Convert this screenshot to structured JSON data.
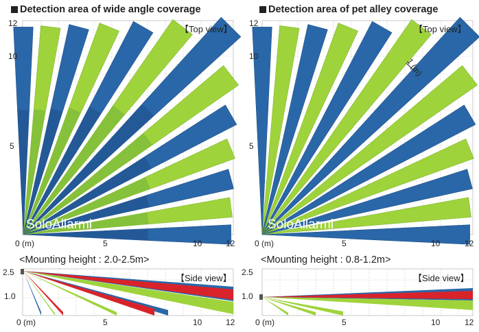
{
  "left": {
    "title": "Detection area of wide angle coverage",
    "top_view_label": "【Top view】",
    "y_ticks": [
      "12",
      "10",
      "5"
    ],
    "x_ticks": [
      "0 (m)",
      "5",
      "10",
      "12"
    ],
    "mounting": "<Mounting height : 2.0-2.5m>",
    "side_view_label": "【Side view】",
    "side_y_ticks": [
      "2.5",
      "1.0"
    ],
    "side_x_ticks": [
      "0 (m)",
      "5",
      "10",
      "12"
    ],
    "watermark": "SoloAllarmi"
  },
  "right": {
    "title": "Detection area of pet alley coverage",
    "top_view_label": "【Top view】",
    "y_ticks": [
      "12",
      "10",
      "5"
    ],
    "x_ticks": [
      "0 (m)",
      "5",
      "10",
      "12"
    ],
    "annotation": "1 (m)",
    "mounting": "<Mounting height : 0.8-1.2m>",
    "side_view_label": "【Side view】",
    "side_y_ticks": [
      "2.5",
      "1.0"
    ],
    "side_x_ticks": [
      "0 (m)",
      "5",
      "10",
      "12"
    ],
    "watermark": "SoloAllarmi"
  },
  "colors": {
    "blue": "#2a67a8",
    "green": "#9fd33b",
    "red": "#d8232a",
    "grid": "#c8c8c8"
  }
}
